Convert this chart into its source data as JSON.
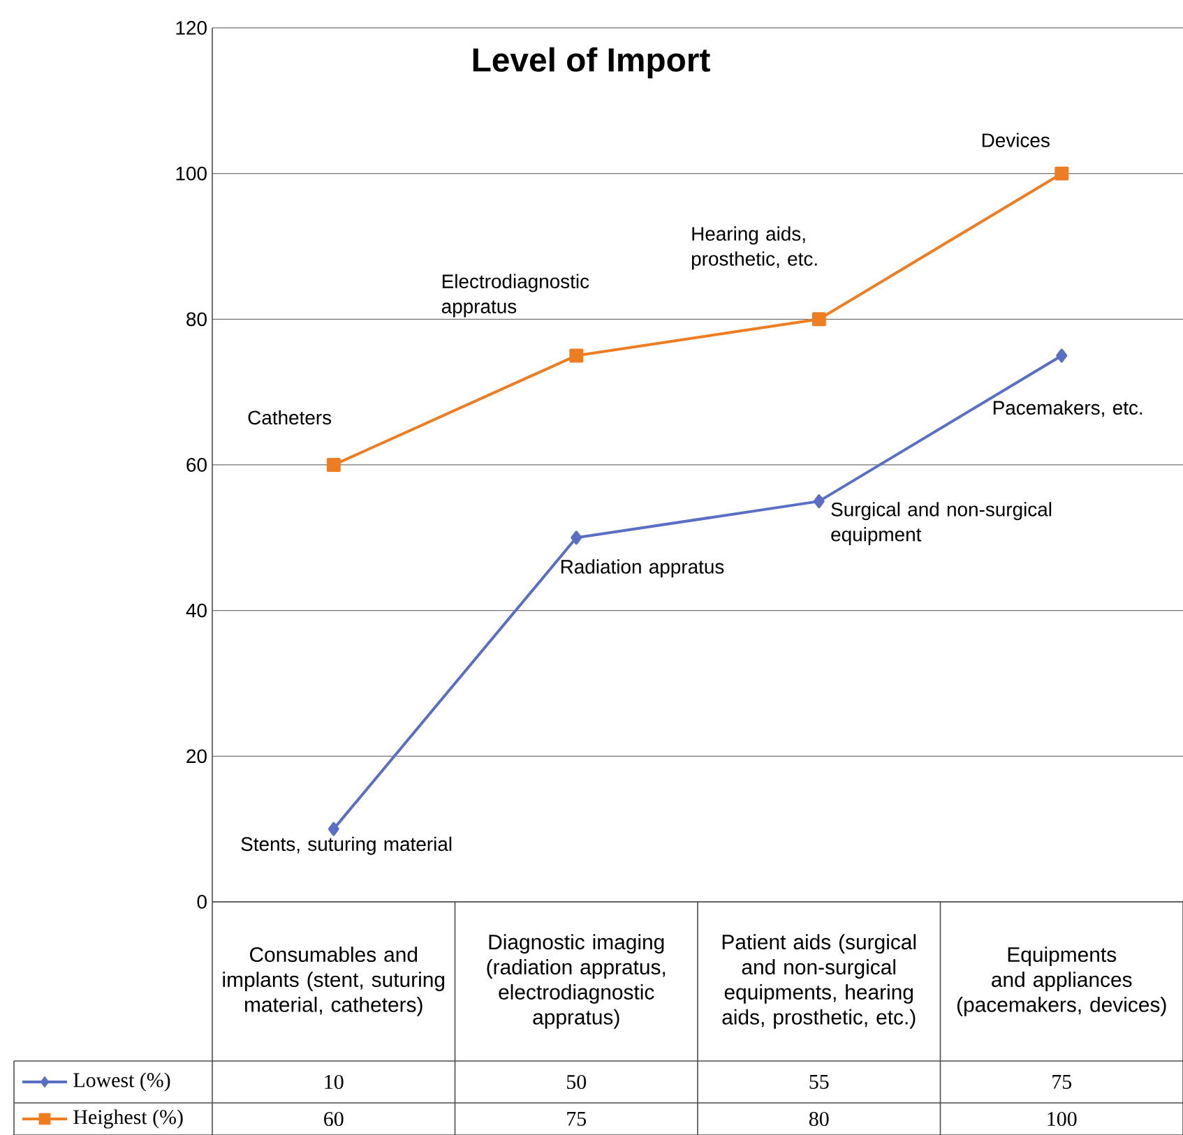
{
  "chart_data": {
    "type": "line",
    "title": "Level of Import",
    "categories": [
      "Consumables and implants (stent, suturing material, catheters)",
      "Diagnostic imaging (radiation appratus, electrodiagnostic appratus)",
      "Patient aids (surgical  and non-surgical equipments, hearing aids, prosthetic, etc.)",
      "Equipments and appliances (pacemakers, devices)"
    ],
    "series": [
      {
        "name": "Lowest (%)",
        "color": "#5a6ec3",
        "marker": "diamond",
        "values": [
          10,
          50,
          55,
          75
        ]
      },
      {
        "name": "Heighest (%)",
        "color": "#ee7d22",
        "marker": "square",
        "values": [
          60,
          75,
          80,
          100
        ]
      }
    ],
    "ylim": [
      0,
      120
    ],
    "yticks": [
      0,
      20,
      40,
      60,
      80,
      100,
      120
    ],
    "grid": "y",
    "legend": "bottom",
    "data_labels": true,
    "line_style": "solid",
    "annotations": [
      {
        "text": "Catheters",
        "x": "Consumables and implants (stent, suturing material, catheters)",
        "y": 60
      },
      {
        "text": "Electrodiagnostic appratus",
        "x": "Diagnostic imaging (radiation appratus, electrodiagnostic appratus)",
        "y": 75
      },
      {
        "text": "Hearing aids, prosthetic, etc.",
        "x": "Patient aids (surgical  and non-surgical equipments, hearing aids, prosthetic, etc.)",
        "y": 80
      },
      {
        "text": "Devices",
        "x": "Equipments and appliances (pacemakers, devices)",
        "y": 100
      },
      {
        "text": "Stents, suturing material",
        "x": "Consumables and implants (stent, suturing material, catheters)",
        "y": 10
      },
      {
        "text": "Radiation appratus",
        "x": "Diagnostic imaging (radiation appratus, electrodiagnostic appratus)",
        "y": 50
      },
      {
        "text": "Surgical and non-surgical equipment",
        "x": "Patient aids (surgical  and non-surgical equipments, hearing aids, prosthetic, etc.)",
        "y": 55
      },
      {
        "text": "Pacemakers, etc.",
        "x": "Equipments and appliances (pacemakers, devices)",
        "y": 75
      }
    ]
  }
}
